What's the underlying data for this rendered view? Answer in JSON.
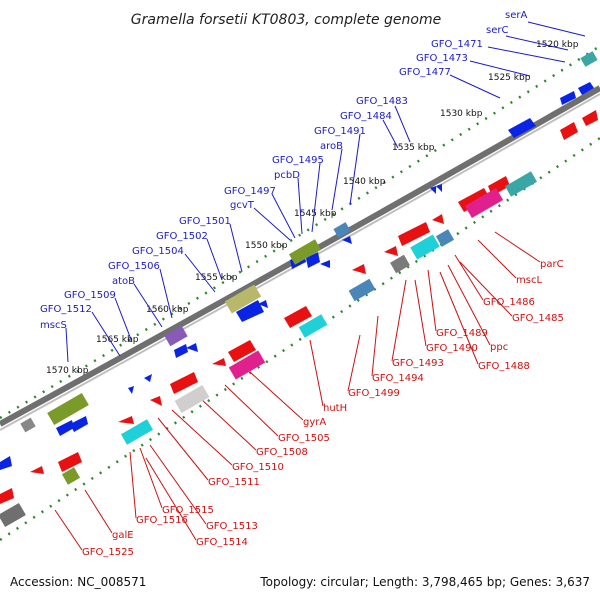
{
  "title": "Gramella forsetii KT0803, complete genome",
  "footer": {
    "accession": "Accession: NC_008571",
    "summary": "Topology: circular; Length: 3,798,465 bp; Genes: 3,637"
  },
  "colors": {
    "forward_label": "#1a1acc",
    "reverse_label": "#cc1111",
    "forward_arrow": "#0a24e6",
    "reverse_arrow": "#e81010",
    "backbone": "#8a8a8a",
    "tick_dots": "#2a8a2a"
  },
  "ticks": [
    "1520 kbp",
    "1525 kbp",
    "1530 kbp",
    "1535 kbp",
    "1540 kbp",
    "1545 kbp",
    "1550 kbp",
    "1555 kbp",
    "1560 kbp",
    "1565 kbp",
    "1570 kbp"
  ],
  "forward_labels": [
    "serA",
    "serC",
    "GFO_1471",
    "GFO_1473",
    "GFO_1477",
    "GFO_1483",
    "GFO_1484",
    "GFO_1491",
    "aroB",
    "GFO_1495",
    "pcbD",
    "GFO_1497",
    "gcvT",
    "GFO_1501",
    "GFO_1502",
    "GFO_1504",
    "GFO_1506",
    "atoB",
    "GFO_1509",
    "GFO_1512",
    "mscS"
  ],
  "reverse_labels": [
    "parC",
    "mscL",
    "GFO_1486",
    "GFO_1485",
    "ppc",
    "GFO_1489",
    "GFO_1490",
    "GFO_1488",
    "GFO_1493",
    "GFO_1494",
    "GFO_1499",
    "hutH",
    "gyrA",
    "GFO_1505",
    "GFO_1508",
    "GFO_1510",
    "GFO_1511",
    "GFO_1515",
    "GFO_1513",
    "GFO_1516",
    "GFO_1514",
    "galE",
    "GFO_1525"
  ]
}
